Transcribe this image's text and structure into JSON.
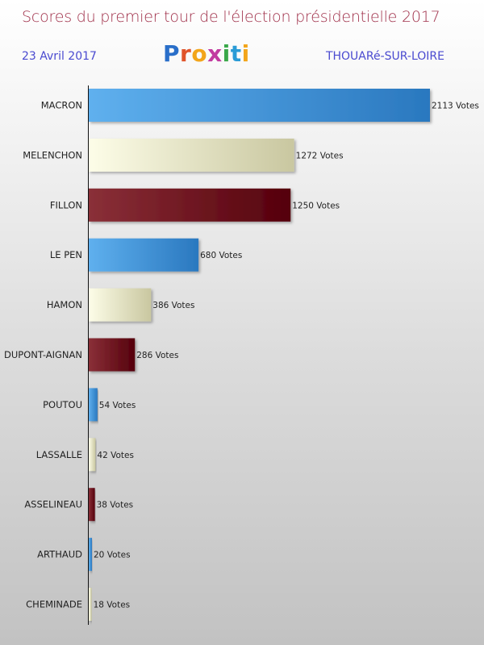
{
  "header": {
    "title": "Scores du premier tour de l'élection présidentielle 2017",
    "date": "23 Avril 2017",
    "city": "THOUARé-SUR-LOIRE",
    "logo_text": "Proxiti"
  },
  "colors": {
    "blue": "#3d8fd6",
    "cream": "#ecebc4",
    "maroon": "#7a1020",
    "title": "#a0304a",
    "subtitle": "#4a4ad0"
  },
  "chart_data": {
    "type": "bar",
    "orientation": "horizontal",
    "title": "Scores du premier tour de l'élection présidentielle 2017",
    "categories": [
      "MACRON",
      "MELENCHON",
      "FILLON",
      "LE PEN",
      "HAMON",
      "DUPONT-AIGNAN",
      "POUTOU",
      "LASSALLE",
      "ASSELINEAU",
      "ARTHAUD",
      "CHEMINADE"
    ],
    "values": [
      2113,
      1272,
      1250,
      680,
      386,
      286,
      54,
      42,
      38,
      20,
      18
    ],
    "value_labels": [
      "2113 Votes",
      "1272 Votes",
      "1250 Votes",
      "680 Votes",
      "386 Votes",
      "286 Votes",
      "54 Votes",
      "42 Votes",
      "38 Votes",
      "20 Votes",
      "18 Votes"
    ],
    "bar_colors": [
      "blue",
      "cream",
      "maroon",
      "blue",
      "cream",
      "maroon",
      "blue",
      "cream",
      "maroon",
      "blue",
      "cream"
    ],
    "xlim": [
      0,
      2113
    ],
    "grid": false,
    "legend": "none"
  }
}
